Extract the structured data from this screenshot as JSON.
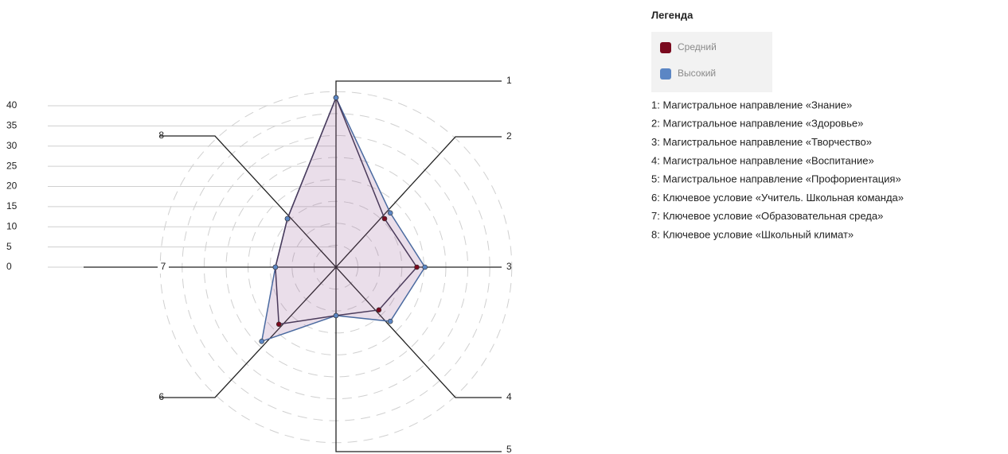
{
  "chart_data": {
    "type": "radar",
    "categories": [
      "1",
      "2",
      "3",
      "4",
      "5",
      "6",
      "7",
      "8"
    ],
    "series": [
      {
        "name": "Средний",
        "color": "#7a0a1f",
        "values": [
          42,
          17,
          20,
          15,
          12,
          20,
          15,
          17
        ]
      },
      {
        "name": "Высокий",
        "color": "#5b86c4",
        "values": [
          42,
          19,
          22,
          19,
          12,
          26,
          15,
          17
        ]
      }
    ],
    "rlim": [
      0,
      40
    ],
    "rticks": [
      0,
      5,
      10,
      15,
      20,
      25,
      30,
      35,
      40
    ],
    "legend_title": "Легенда",
    "axis_descriptions": [
      "1: Магистральное направление «Знание»",
      "2: Магистральное направление «Здоровье»",
      "3: Магистральное направление «Творчество»",
      "4: Магистральное направление «Воспитание»",
      "5: Магистральное направление «Профориентация»",
      "6: Ключевое условие «Учитель. Школьная команда»",
      "7: Ключевое условие «Образовательная среда»",
      "8: Ключевое условие «Школьный климат»"
    ]
  }
}
